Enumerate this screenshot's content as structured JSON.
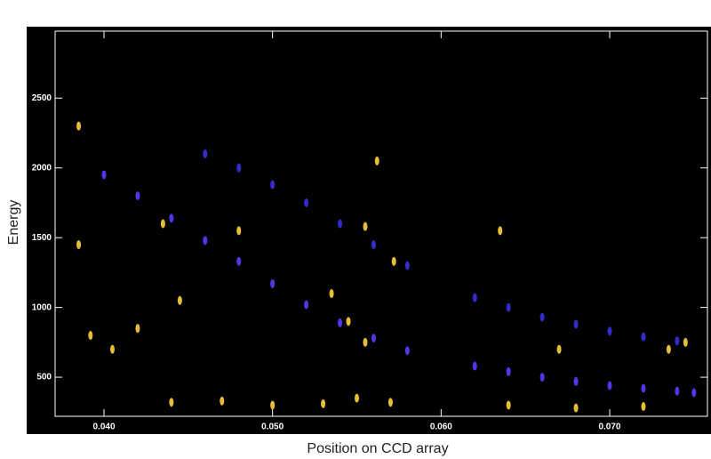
{
  "chart_data": {
    "type": "scatter",
    "xlabel": "Position on CCD array",
    "ylabel": "Energy",
    "xlim": [
      0.0371,
      0.0758
    ],
    "ylim": [
      220,
      2980
    ],
    "xticks": [
      {
        "value": 0.04,
        "label": "0.040"
      },
      {
        "value": 0.05,
        "label": "0.050"
      },
      {
        "value": 0.06,
        "label": "0.060"
      },
      {
        "value": 0.07,
        "label": "0.070"
      }
    ],
    "yticks": [
      500,
      1000,
      1500,
      2000,
      2500
    ],
    "series": [
      {
        "color": "#5a3cff",
        "x": [
          0.04,
          0.042,
          0.044,
          0.046,
          0.048,
          0.05,
          0.052,
          0.054,
          0.056,
          0.058,
          0.062,
          0.064,
          0.066,
          0.068,
          0.07,
          0.072,
          0.074,
          0.075
        ],
        "values": [
          1950,
          1800,
          1640,
          1480,
          1330,
          1170,
          1020,
          890,
          780,
          690,
          580,
          540,
          500,
          470,
          440,
          420,
          400,
          390
        ]
      },
      {
        "color": "#3a30e0",
        "x": [
          0.046,
          0.048,
          0.05,
          0.052,
          0.054,
          0.056,
          0.058,
          0.062,
          0.064,
          0.066,
          0.068,
          0.07,
          0.072,
          0.074
        ],
        "values": [
          2100,
          2000,
          1880,
          1750,
          1600,
          1450,
          1300,
          1070,
          1000,
          930,
          880,
          830,
          790,
          760
        ]
      },
      {
        "color": "#ffd23c",
        "x": [
          0.0385,
          0.0385,
          0.0435,
          0.048,
          0.0535,
          0.0562,
          0.0555,
          0.0572,
          0.0635,
          0.0392,
          0.0405,
          0.042,
          0.0445,
          0.0545,
          0.0555,
          0.067,
          0.0735,
          0.0745,
          0.044,
          0.047,
          0.05,
          0.053,
          0.055,
          0.057,
          0.064,
          0.068,
          0.072
        ],
        "values": [
          2300,
          1450,
          1600,
          1550,
          1100,
          2050,
          1580,
          1330,
          1550,
          800,
          700,
          850,
          1050,
          900,
          750,
          700,
          700,
          750,
          320,
          330,
          300,
          310,
          350,
          320,
          300,
          280,
          290
        ]
      }
    ]
  }
}
